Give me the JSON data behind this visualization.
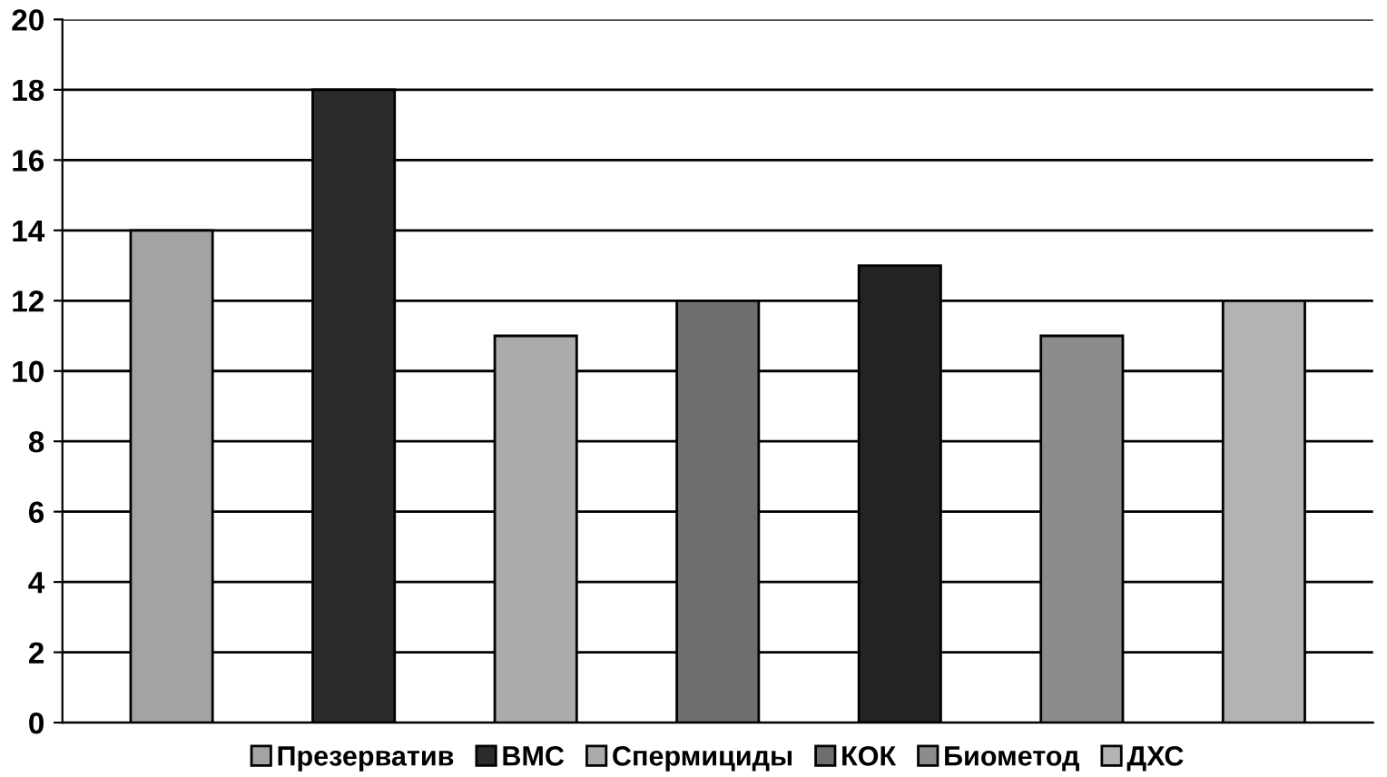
{
  "chart_data": {
    "type": "bar",
    "categories": [
      null,
      null,
      null,
      null,
      null,
      null,
      null
    ],
    "series": [
      {
        "name": "Презерватив",
        "color": "#a3a3a3",
        "values": [
          14,
          null,
          null,
          null,
          null,
          null,
          null
        ]
      },
      {
        "name": "ВМС",
        "color": "#2b2b2b",
        "values": [
          null,
          18,
          null,
          null,
          null,
          null,
          null
        ]
      },
      {
        "name": "Спермициды",
        "color": "#ababab",
        "values": [
          null,
          null,
          11,
          null,
          null,
          null,
          null
        ]
      },
      {
        "name": "КОК",
        "color": "#6e6e6e",
        "values": [
          null,
          null,
          null,
          12,
          null,
          null,
          null
        ]
      },
      {
        "color": "#232323",
        "values": [
          null,
          null,
          null,
          null,
          13,
          null,
          null
        ]
      },
      {
        "name": "Биометод",
        "color": "#8c8c8c",
        "values": [
          null,
          null,
          null,
          null,
          null,
          11,
          null
        ]
      },
      {
        "name": "ДХС",
        "color": "#b3b3b3",
        "values": [
          null,
          null,
          null,
          null,
          null,
          null,
          12
        ]
      }
    ],
    "ylim": [
      0,
      20
    ],
    "yticks": [
      0,
      2,
      4,
      6,
      8,
      10,
      12,
      14,
      16,
      18,
      20
    ],
    "grid": "y",
    "legend": "bottom"
  }
}
